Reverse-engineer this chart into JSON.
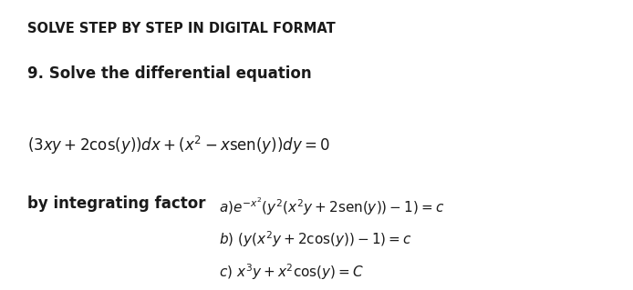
{
  "background_color": "#ffffff",
  "title_text": "SOLVE STEP BY STEP IN DIGITAL FORMAT",
  "subtitle_text": "9. Solve the differential equation",
  "equation_text": "$(3xy + 2\\mathrm{cos}(y))dx + (x^2 - x\\mathrm{sen}(y))dy = 0$",
  "label_text": "by integrating factor",
  "answer_a_text": "$a)e^{-x^2}(y^2(x^2y + 2\\mathrm{sen}(y)) - 1) = c$",
  "answer_b_text": "$b)\\ (y(x^2y + 2\\mathrm{cos}(y)) - 1) = c$",
  "answer_c_text": "$c)\\ x^3y + x^2\\mathrm{cos}(y) = C$",
  "text_color": "#1a1a1a",
  "fig_width": 6.94,
  "fig_height": 3.19,
  "dpi": 100
}
